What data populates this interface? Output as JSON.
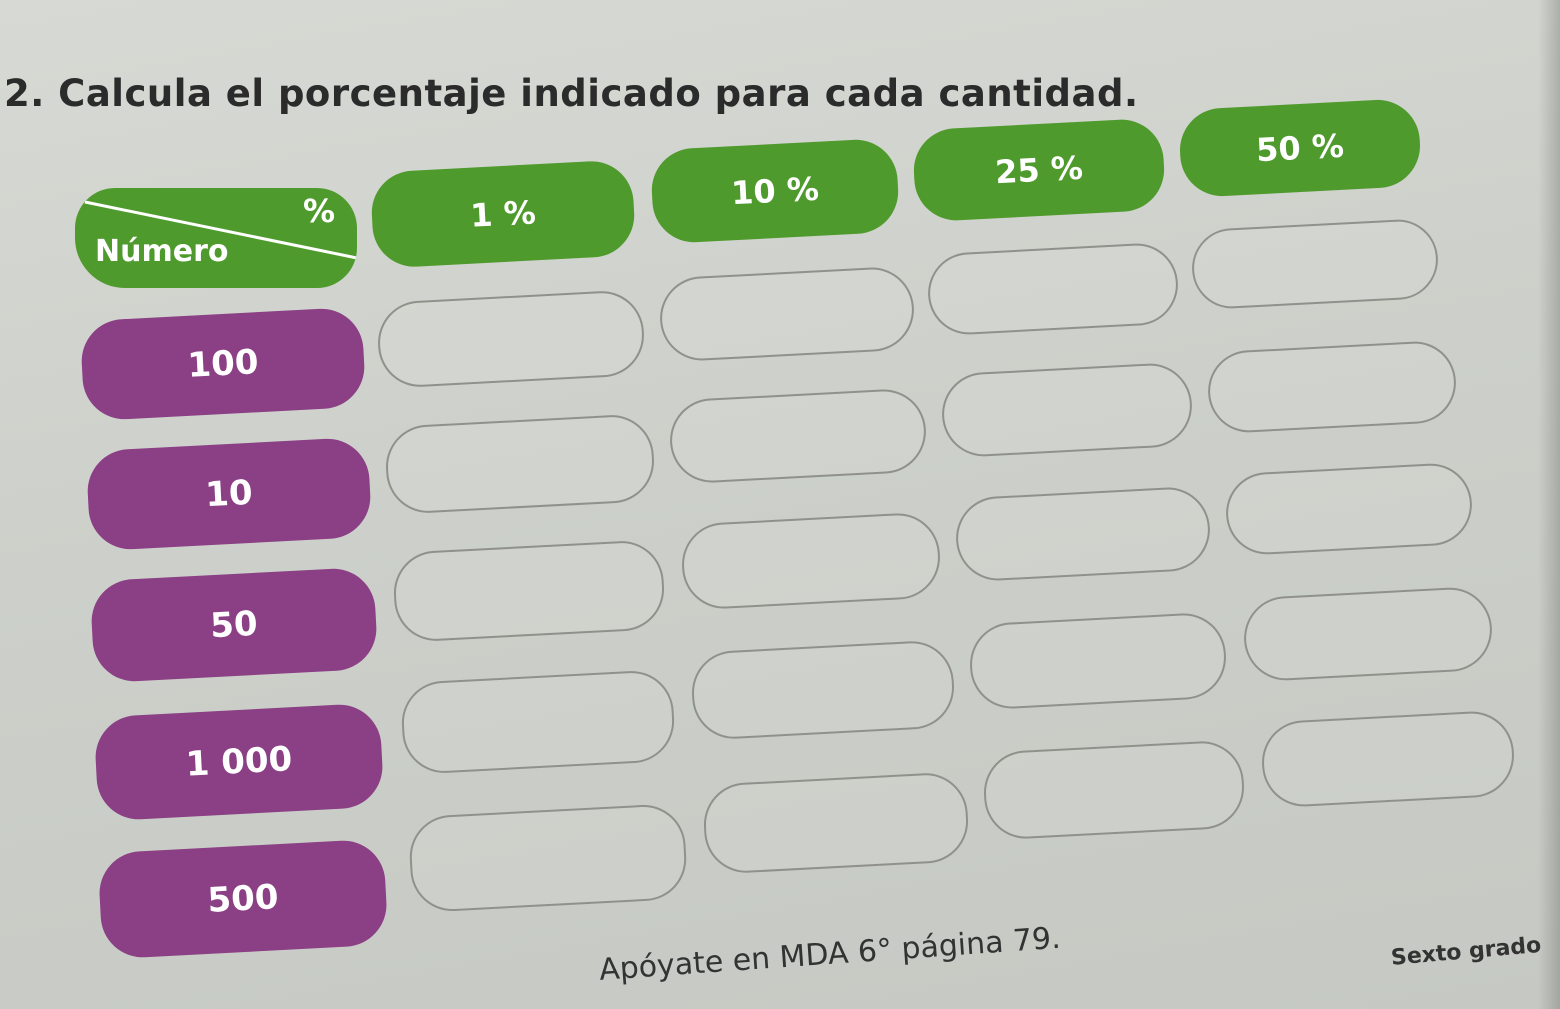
{
  "instruction": "2. Calcula el porcentaje indicado para cada cantidad.",
  "header": {
    "corner_percent": "%",
    "corner_number": "Número",
    "percent_columns": [
      "1 %",
      "10 %",
      "25 %",
      "50 %"
    ]
  },
  "rows": [
    {
      "number": "100",
      "answers": [
        "",
        "",
        "",
        ""
      ]
    },
    {
      "number": "10",
      "answers": [
        "",
        "",
        "",
        ""
      ]
    },
    {
      "number": "50",
      "answers": [
        "",
        "",
        "",
        ""
      ]
    },
    {
      "number": "1 000",
      "answers": [
        "",
        "",
        "",
        ""
      ]
    },
    {
      "number": "500",
      "answers": [
        "",
        "",
        "",
        ""
      ]
    }
  ],
  "footnote": "Apóyate en MDA 6° página 79.",
  "grade": "Sexto grado",
  "colors": {
    "header_green": "#4f9a2c",
    "row_purple": "#8b3f85"
  }
}
